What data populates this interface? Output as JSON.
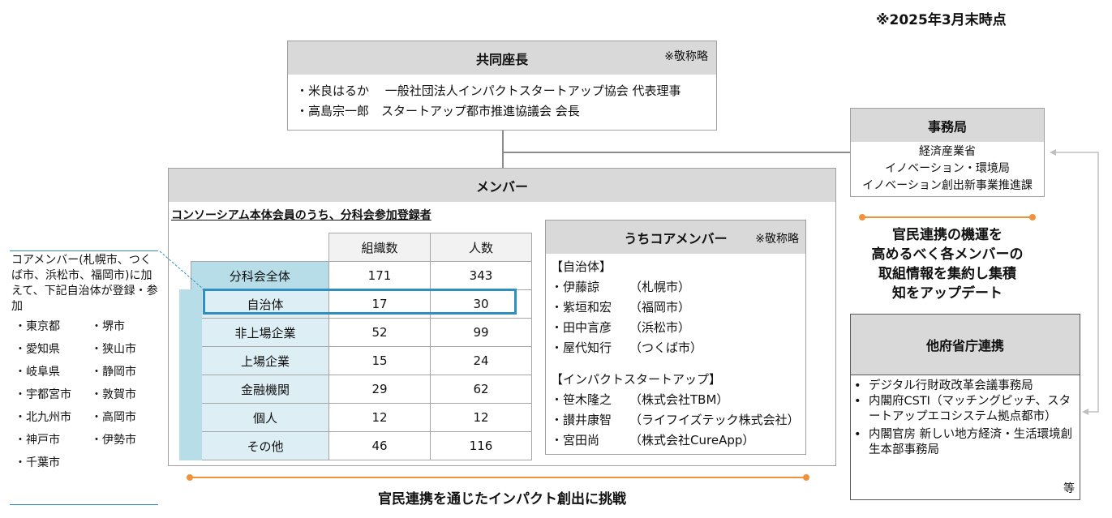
{
  "as_of": "※2025年3月末時点",
  "cochairs": {
    "title": "共同座長",
    "note": "※敬称略",
    "lines": [
      "米良はるか　 一般社団法人インパクトスタートアップ協会 代表理事",
      "高島宗一郎　スタートアップ都市推進協議会 会長"
    ]
  },
  "secretariat": {
    "title": "事務局",
    "lines": [
      "経済産業省",
      "イノベーション・環境局",
      "イノベーション創出新事業推進課"
    ]
  },
  "secretariat_caption": [
    "官民連携の機運を",
    "高めるべく各メンバーの",
    "取組情報を集約し集積",
    "知をアップデート"
  ],
  "members": {
    "title": "メンバー",
    "subtitle": "コンソーシアム本体会員のうち、分科会参加登録者",
    "table": {
      "headers": [
        "組織数",
        "人数"
      ],
      "rows": [
        {
          "label": "分科会全体",
          "orgs": "171",
          "people": "343"
        },
        {
          "label": "自治体",
          "orgs": "17",
          "people": "30"
        },
        {
          "label": "非上場企業",
          "orgs": "52",
          "people": "99"
        },
        {
          "label": "上場企業",
          "orgs": "15",
          "people": "24"
        },
        {
          "label": "金融機関",
          "orgs": "29",
          "people": "62"
        },
        {
          "label": "個人",
          "orgs": "12",
          "people": "12"
        },
        {
          "label": "その他",
          "orgs": "46",
          "people": "116"
        }
      ]
    }
  },
  "core": {
    "title": "うちコアメンバー",
    "note": "※敬称略",
    "municipal_head": "【自治体】",
    "municipal": [
      {
        "name": "伊藤諒",
        "org": "（札幌市）"
      },
      {
        "name": "紫垣和宏",
        "org": "（福岡市）"
      },
      {
        "name": "田中言彦",
        "org": "（浜松市）"
      },
      {
        "name": "屋代知行",
        "org": "（つくば市）"
      }
    ],
    "startup_head": "【インパクトスタートアップ】",
    "startups": [
      {
        "name": "笹木隆之",
        "org": "（株式会社TBM）"
      },
      {
        "name": "讃井康智",
        "org": "（ライフイズテック株式会社）"
      },
      {
        "name": "宮田尚",
        "org": "（株式会社CureApp）"
      }
    ]
  },
  "side_note": {
    "text": "コアメンバー(札幌市、つくば市、浜松市、福岡市)に加えて、下記自治体が登録・参加",
    "col1": [
      "東京都",
      "愛知県",
      "岐阜県",
      "宇都宮市",
      "北九州市",
      "神戸市",
      "千葉市"
    ],
    "col2": [
      "堺市",
      "狭山市",
      "静岡市",
      "敦賀市",
      "高岡市",
      "伊勢市"
    ]
  },
  "other_ministries": {
    "title": "他府省庁連携",
    "items": [
      "デジタル行財政改革会議事務局",
      "内閣府CSTI（マッチングピッチ、スタートアップエコシステム拠点都市）",
      "内閣官房 新しい地方経済・生活環境創生本部事務局"
    ],
    "etc": "等"
  },
  "footer": "官民連携を通じたインパクト創出に挑戦"
}
